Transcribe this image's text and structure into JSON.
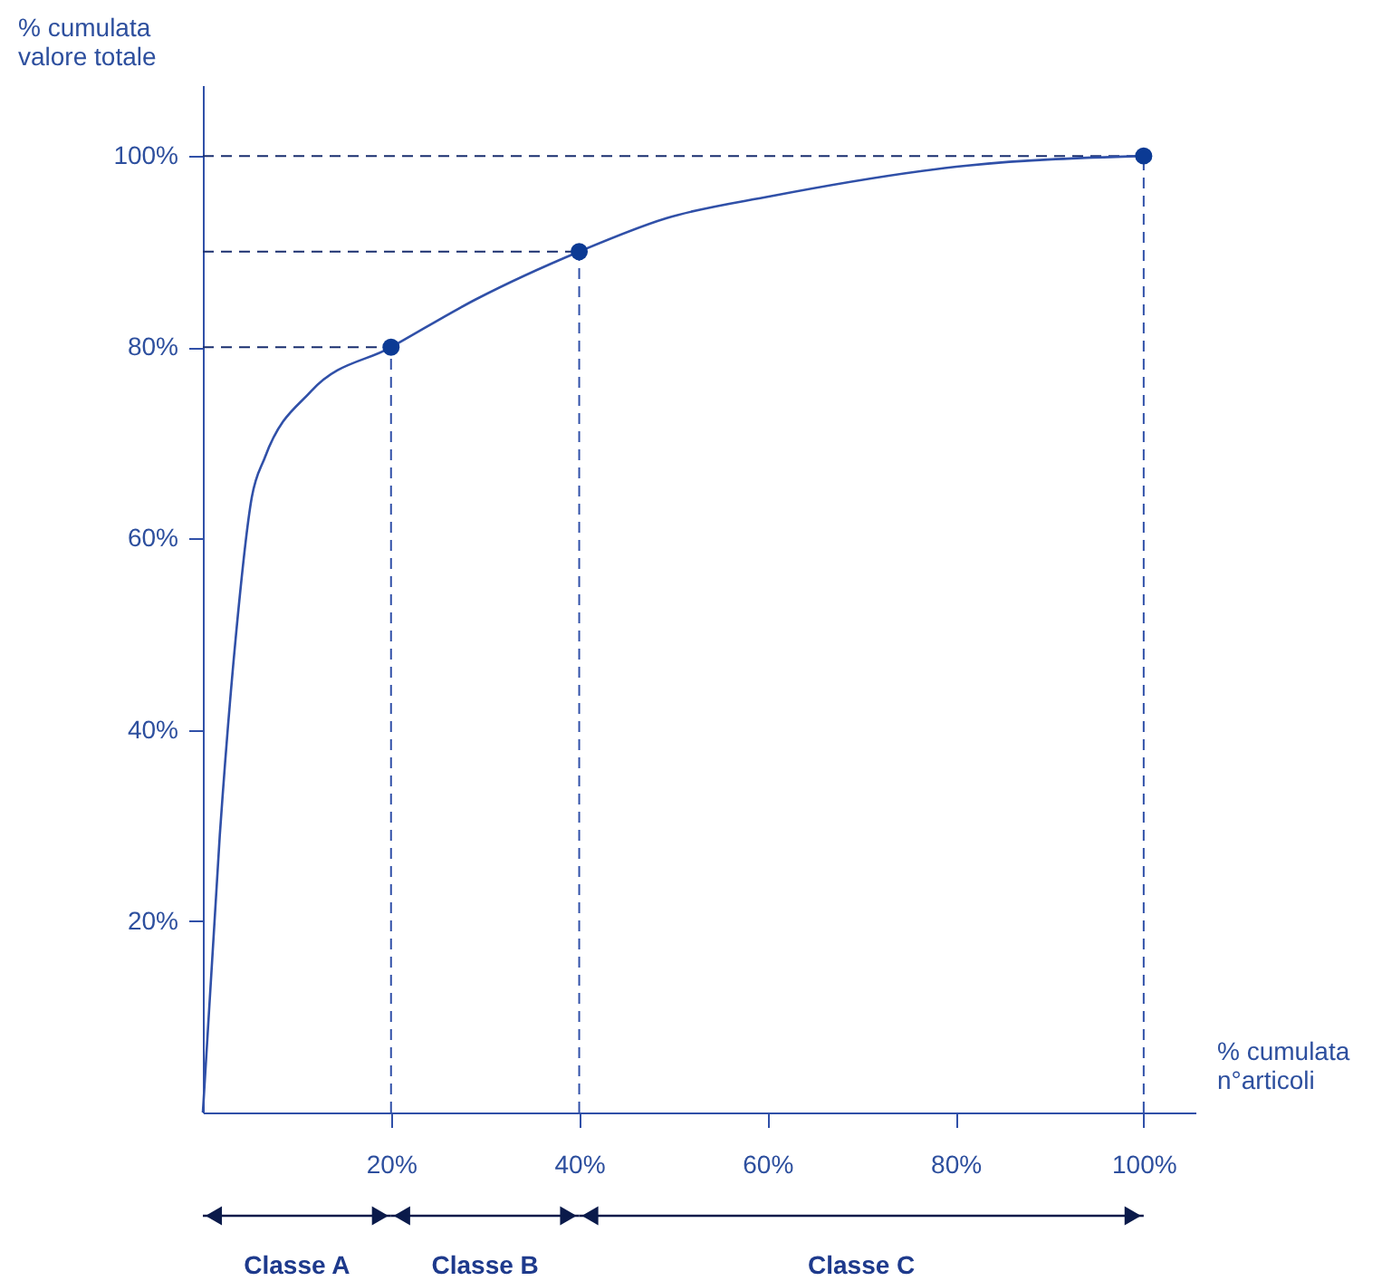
{
  "chart_data": {
    "type": "line",
    "xlabel": "% cumulata\nn°articoli",
    "ylabel": "% cumulata\nvalore totale",
    "xlim": [
      0,
      105.5
    ],
    "ylim": [
      0,
      107.4
    ],
    "xticks": [
      {
        "value": 20,
        "label": "20%"
      },
      {
        "value": 40,
        "label": "40%"
      },
      {
        "value": 60,
        "label": "60%"
      },
      {
        "value": 80,
        "label": "80%"
      },
      {
        "value": 100,
        "label": "100%"
      }
    ],
    "yticks": [
      {
        "value": 20,
        "label": "20%"
      },
      {
        "value": 40,
        "label": "40%"
      },
      {
        "value": 60,
        "label": "60%"
      },
      {
        "value": 80,
        "label": "80%"
      },
      {
        "value": 100,
        "label": "100%"
      }
    ],
    "grid": false,
    "series": [
      {
        "type": "line",
        "color": "#1a2f6f",
        "marker": "none",
        "line_style": "dashed",
        "x": [
          0,
          20
        ],
        "values": [
          80,
          80
        ]
      },
      {
        "type": "line",
        "color": "#1a2f6f",
        "marker": "none",
        "line_style": "dashed",
        "x": [
          0,
          40
        ],
        "values": [
          90,
          90
        ]
      },
      {
        "type": "line",
        "color": "#1a2f6f",
        "marker": "none",
        "line_style": "dashed",
        "x": [
          0,
          100
        ],
        "values": [
          100,
          100
        ]
      },
      {
        "type": "line",
        "color": "#3050a8",
        "marker": "none",
        "line_style": "dashed",
        "x": [
          20,
          20
        ],
        "values": [
          0,
          80
        ]
      },
      {
        "type": "line",
        "color": "#3050a8",
        "marker": "none",
        "line_style": "dashed",
        "x": [
          40,
          40
        ],
        "values": [
          0,
          90
        ]
      },
      {
        "type": "line",
        "color": "#3050a8",
        "marker": "none",
        "line_style": "dashed",
        "x": [
          100,
          100
        ],
        "values": [
          0,
          100
        ]
      },
      {
        "type": "line",
        "color": "#3050a8",
        "marker": "none",
        "line_style": "solid",
        "x": [
          0,
          1.8,
          3.5,
          5.2,
          6.6,
          11.5,
          20,
          29,
          40,
          49.3,
          60.4,
          81.3,
          100
        ],
        "values": [
          0,
          29,
          49.7,
          64.3,
          68.5,
          75.4,
          80,
          85,
          90,
          93.5,
          95.8,
          99,
          100
        ]
      },
      {
        "type": "scatter",
        "color": "#0b3a94",
        "marker": "circle",
        "x": [
          20,
          40,
          100
        ],
        "values": [
          80,
          90,
          100
        ]
      }
    ],
    "annotations": [
      "Classe A",
      "Classe B",
      "Classe C"
    ]
  }
}
